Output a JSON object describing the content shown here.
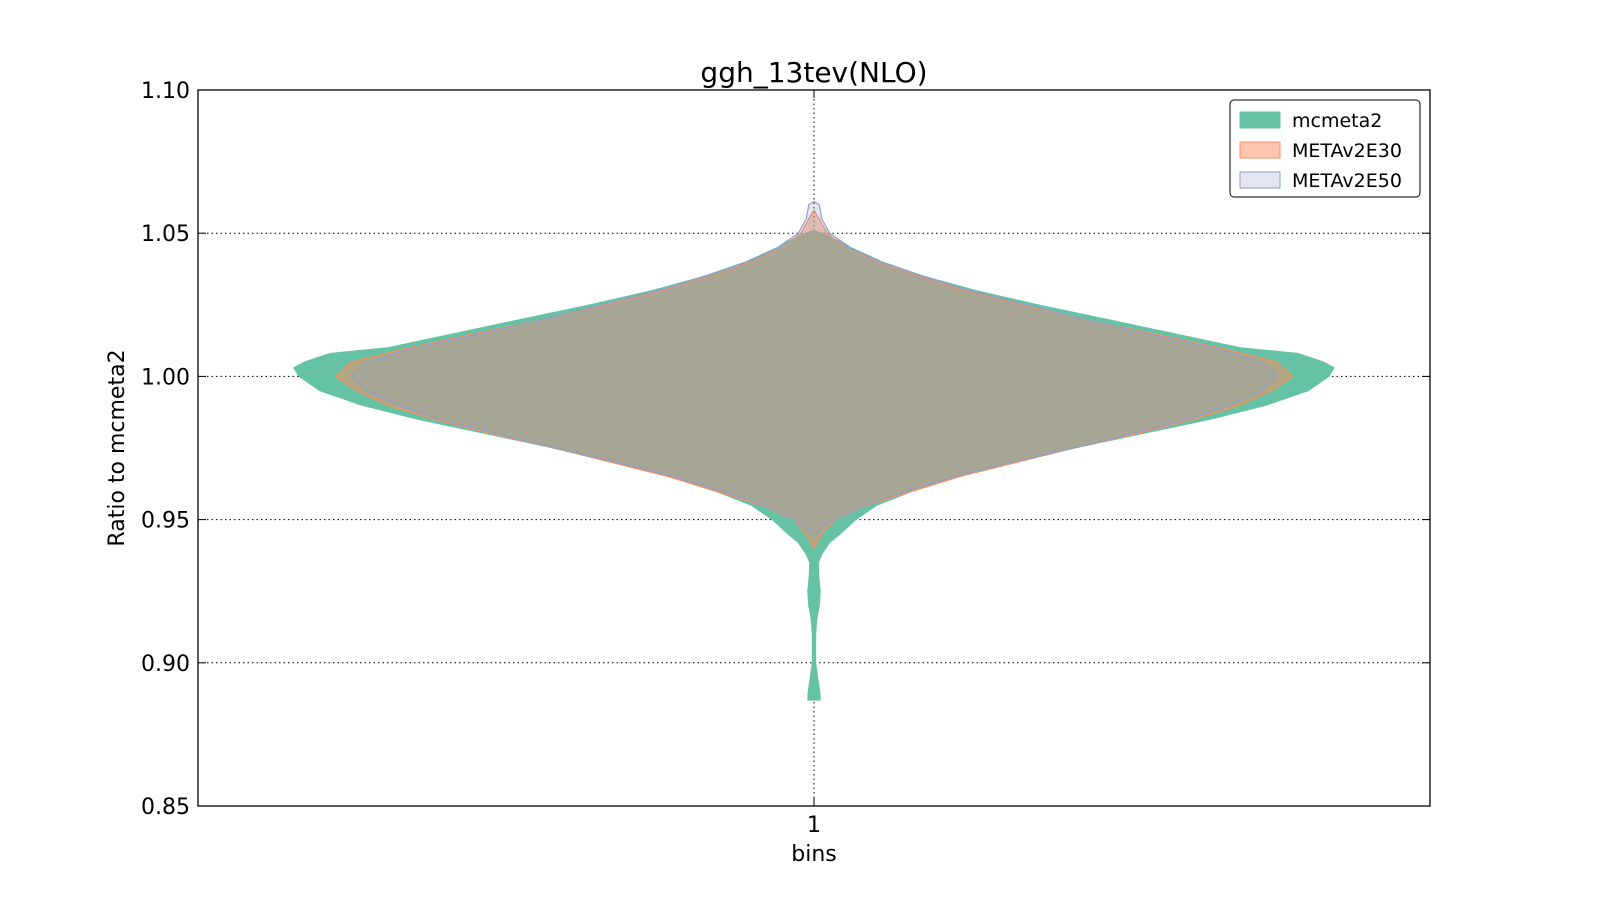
{
  "chart_data": {
    "type": "violin",
    "title": "ggh_13tev(NLO)",
    "xlabel": "bins",
    "ylabel": "Ratio to mcmeta2",
    "categories": [
      "1"
    ],
    "ylim": [
      0.85,
      1.1
    ],
    "yticks": [
      "0.85",
      "0.90",
      "0.95",
      "1.00",
      "1.05",
      "1.10"
    ],
    "ytick_values": [
      0.85,
      0.9,
      0.95,
      1.0,
      1.05,
      1.1
    ],
    "grid": true,
    "legend_position": "top-right",
    "series": [
      {
        "name": "mcmeta2",
        "fill": "#66c2a5",
        "edge": "#66c2a5",
        "fill_opacity": 1.0,
        "profile": [
          [
            0.887,
            0.012
          ],
          [
            0.89,
            0.011
          ],
          [
            0.895,
            0.007
          ],
          [
            0.9,
            0.003
          ],
          [
            0.905,
            0.003
          ],
          [
            0.91,
            0.003
          ],
          [
            0.915,
            0.005
          ],
          [
            0.92,
            0.01
          ],
          [
            0.925,
            0.012
          ],
          [
            0.93,
            0.009
          ],
          [
            0.935,
            0.008
          ],
          [
            0.938,
            0.015
          ],
          [
            0.942,
            0.03
          ],
          [
            0.945,
            0.05
          ],
          [
            0.95,
            0.08
          ],
          [
            0.955,
            0.12
          ],
          [
            0.96,
            0.19
          ],
          [
            0.965,
            0.28
          ],
          [
            0.97,
            0.38
          ],
          [
            0.975,
            0.5
          ],
          [
            0.98,
            0.63
          ],
          [
            0.985,
            0.76
          ],
          [
            0.99,
            0.87
          ],
          [
            0.995,
            0.95
          ],
          [
            1.0,
            0.99
          ],
          [
            1.003,
            1.0
          ],
          [
            1.005,
            0.98
          ],
          [
            1.008,
            0.93
          ],
          [
            1.01,
            0.82
          ],
          [
            1.015,
            0.69
          ],
          [
            1.02,
            0.56
          ],
          [
            1.025,
            0.43
          ],
          [
            1.03,
            0.31
          ],
          [
            1.035,
            0.21
          ],
          [
            1.04,
            0.13
          ],
          [
            1.045,
            0.07
          ],
          [
            1.049,
            0.03
          ],
          [
            1.051,
            0.0
          ]
        ]
      },
      {
        "name": "METAv2E30",
        "fill": "#fc8d62",
        "edge": "#fc8d62",
        "fill_opacity": 0.5,
        "profile": [
          [
            0.94,
            0.0
          ],
          [
            0.945,
            0.015
          ],
          [
            0.95,
            0.04
          ],
          [
            0.955,
            0.1
          ],
          [
            0.96,
            0.19
          ],
          [
            0.965,
            0.28
          ],
          [
            0.97,
            0.39
          ],
          [
            0.975,
            0.5
          ],
          [
            0.98,
            0.62
          ],
          [
            0.985,
            0.73
          ],
          [
            0.99,
            0.82
          ],
          [
            0.995,
            0.88
          ],
          [
            1.0,
            0.92
          ],
          [
            1.005,
            0.89
          ],
          [
            1.01,
            0.78
          ],
          [
            1.015,
            0.65
          ],
          [
            1.02,
            0.52
          ],
          [
            1.025,
            0.4
          ],
          [
            1.03,
            0.29
          ],
          [
            1.035,
            0.2
          ],
          [
            1.04,
            0.12
          ],
          [
            1.045,
            0.06
          ],
          [
            1.05,
            0.025
          ],
          [
            1.055,
            0.01
          ],
          [
            1.058,
            0.0
          ]
        ]
      },
      {
        "name": "METAv2E50",
        "fill": "#8da0cb",
        "edge": "#8da0cb",
        "fill_opacity": 0.25,
        "profile": [
          [
            0.944,
            0.0
          ],
          [
            0.948,
            0.02
          ],
          [
            0.952,
            0.06
          ],
          [
            0.956,
            0.11
          ],
          [
            0.96,
            0.18
          ],
          [
            0.965,
            0.27
          ],
          [
            0.97,
            0.38
          ],
          [
            0.975,
            0.5
          ],
          [
            0.98,
            0.61
          ],
          [
            0.985,
            0.72
          ],
          [
            0.99,
            0.8
          ],
          [
            0.995,
            0.86
          ],
          [
            1.0,
            0.89
          ],
          [
            1.005,
            0.86
          ],
          [
            1.01,
            0.77
          ],
          [
            1.015,
            0.64
          ],
          [
            1.02,
            0.52
          ],
          [
            1.025,
            0.41
          ],
          [
            1.03,
            0.3
          ],
          [
            1.035,
            0.21
          ],
          [
            1.04,
            0.13
          ],
          [
            1.045,
            0.07
          ],
          [
            1.05,
            0.03
          ],
          [
            1.055,
            0.015
          ],
          [
            1.06,
            0.01
          ],
          [
            1.061,
            0.0
          ]
        ]
      }
    ]
  }
}
